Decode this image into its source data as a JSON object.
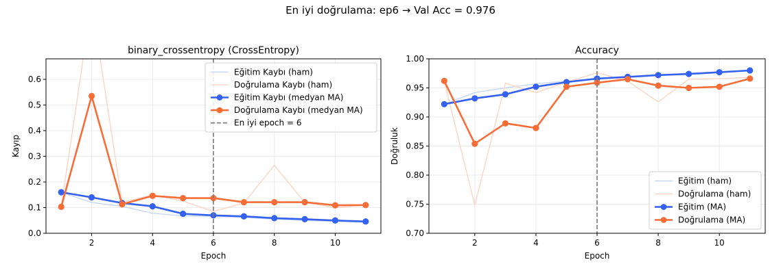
{
  "suptitle": "En iyi doğrulama: ep6 → Val Acc = 0.976",
  "chart_data": [
    {
      "type": "line",
      "title": "binary_crossentropy (CrossEntropy)",
      "xlabel": "Epoch",
      "ylabel": "Kayıp",
      "xlim": [
        0.5,
        11.5
      ],
      "ylim": [
        0,
        0.68
      ],
      "xticks": [
        2,
        4,
        6,
        8,
        10
      ],
      "yticks": [
        0.0,
        0.1,
        0.2,
        0.3,
        0.4,
        0.5,
        0.6
      ],
      "ytick_labels": [
        "0.0",
        "0.1",
        "0.2",
        "0.3",
        "0.4",
        "0.5",
        "0.6"
      ],
      "grid": true,
      "legend_position": "upper-right",
      "vline": {
        "x": 6,
        "label": "En iyi epoch = 6"
      },
      "x": [
        1,
        2,
        3,
        4,
        5,
        6,
        7,
        8,
        9,
        10,
        11
      ],
      "series": [
        {
          "name": "Eğitim Kaybı (ham)",
          "style": "raw",
          "color": "#c6d8f5",
          "values": [
            0.16,
            0.12,
            0.105,
            0.078,
            0.068,
            0.066,
            0.062,
            0.055,
            0.05,
            0.046,
            0.043
          ]
        },
        {
          "name": "Doğrulama Kaybı (ham)",
          "style": "raw",
          "color": "#fbd5c4",
          "values": [
            0.105,
            0.9,
            0.12,
            0.15,
            0.125,
            0.085,
            0.118,
            0.265,
            0.12,
            0.1,
            0.11
          ]
        },
        {
          "name": "Eğitim Kaybı (medyan MA)",
          "style": "ma",
          "color": "#3461f0",
          "values": [
            0.16,
            0.14,
            0.118,
            0.105,
            0.076,
            0.07,
            0.066,
            0.059,
            0.055,
            0.05,
            0.046
          ]
        },
        {
          "name": "Doğrulama Kaybı (medyan MA)",
          "style": "ma",
          "color": "#f76d38",
          "values": [
            0.103,
            0.535,
            0.113,
            0.146,
            0.137,
            0.137,
            0.121,
            0.121,
            0.121,
            0.109,
            0.11
          ]
        }
      ]
    },
    {
      "type": "line",
      "title": "Accuracy",
      "xlabel": "Epoch",
      "ylabel": "Doğruluk",
      "xlim": [
        0.5,
        11.5
      ],
      "ylim": [
        0.7,
        1.0
      ],
      "xticks": [
        2,
        4,
        6,
        8,
        10
      ],
      "yticks": [
        0.7,
        0.75,
        0.8,
        0.85,
        0.9,
        0.95,
        1.0
      ],
      "ytick_labels": [
        "0.70",
        "0.75",
        "0.80",
        "0.85",
        "0.90",
        "0.95",
        "1.00"
      ],
      "grid": true,
      "legend_position": "lower-right",
      "vline": {
        "x": 6,
        "label": ""
      },
      "x": [
        1,
        2,
        3,
        4,
        5,
        6,
        7,
        8,
        9,
        10,
        11
      ],
      "series": [
        {
          "name": "Eğitim (ham)",
          "style": "raw",
          "color": "#c6d8f5",
          "values": [
            0.922,
            0.942,
            0.95,
            0.957,
            0.962,
            0.966,
            0.969,
            0.972,
            0.975,
            0.977,
            0.98
          ]
        },
        {
          "name": "Doğrulama (ham)",
          "style": "raw",
          "color": "#fbd5c4",
          "values": [
            0.962,
            0.748,
            0.958,
            0.942,
            0.96,
            0.976,
            0.962,
            0.926,
            0.965,
            0.966,
            0.968
          ]
        },
        {
          "name": "Eğitim (MA)",
          "style": "ma",
          "color": "#3461f0",
          "values": [
            0.922,
            0.932,
            0.939,
            0.952,
            0.96,
            0.966,
            0.969,
            0.972,
            0.974,
            0.977,
            0.98
          ]
        },
        {
          "name": "Doğrulama (MA)",
          "style": "ma",
          "color": "#f76d38",
          "values": [
            0.962,
            0.854,
            0.889,
            0.881,
            0.952,
            0.959,
            0.965,
            0.954,
            0.95,
            0.952,
            0.966
          ]
        }
      ]
    }
  ]
}
